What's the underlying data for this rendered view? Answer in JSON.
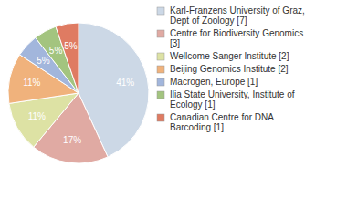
{
  "chart_data": {
    "type": "pie",
    "categories": [
      "Karl-Franzens University of Graz, Dept of Zoology [7]",
      "Centre for Biodiversity Genomics [3]",
      "Wellcome Sanger Institute [2]",
      "Beijing Genomics Institute [2]",
      "Macrogen, Europe [1]",
      "Ilia State University, Institute of Ecology [1]",
      "Canadian Centre for DNA Barcoding [1]"
    ],
    "values": [
      41,
      17,
      11,
      11,
      5,
      5,
      5
    ],
    "value_labels": [
      "41%",
      "17%",
      "11%",
      "11%",
      "5%",
      "5%",
      "5%"
    ],
    "colors": [
      "#ccd8e6",
      "#e0aaa3",
      "#dde2a4",
      "#f0b27c",
      "#a2b6dc",
      "#a3c47f",
      "#df7b62"
    ],
    "data_labels": true,
    "legend": "right"
  }
}
